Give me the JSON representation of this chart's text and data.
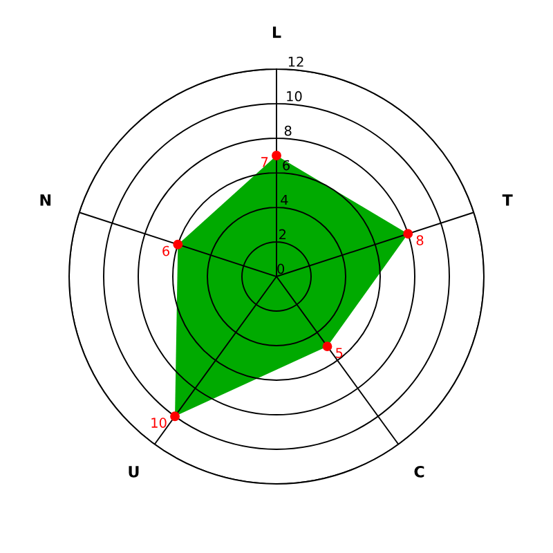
{
  "chart_data": {
    "type": "radar",
    "categories": [
      "L",
      "T",
      "C",
      "U",
      "N"
    ],
    "series": [
      {
        "color": "#00aa00",
        "colors": [
          "#ff0000",
          "#ff0000",
          "#ff0000",
          "#ff0000",
          "#ff0000"
        ],
        "values": [
          7,
          8,
          5,
          10,
          6
        ]
      }
    ],
    "ylim": [
      0,
      12
    ],
    "yticks": [
      0,
      2,
      4,
      6,
      8,
      10,
      12
    ],
    "grid": true,
    "marker": "circle",
    "data_labels": true
  }
}
